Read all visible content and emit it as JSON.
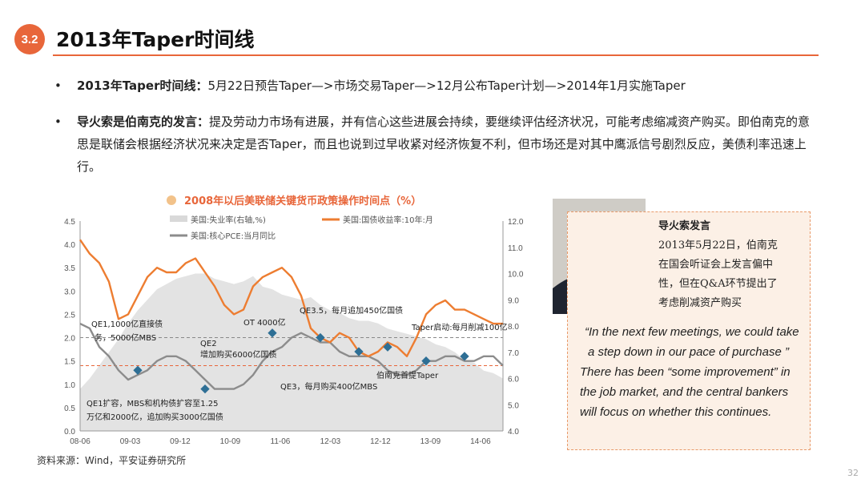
{
  "header": {
    "section_number": "3.2",
    "title": "2013年Taper时间线"
  },
  "bullets": [
    {
      "label": "2013年Taper时间线：",
      "text": "5月22日预告Taper—>市场交易Taper—>12月公布Taper计划—>2014年1月实施Taper"
    },
    {
      "label": "导火索是伯南克的发言：",
      "text": "提及劳动力市场有进展，并有信心这些进展会持续，要继续评估经济状况，可能考虑缩减资产购买。即伯南克的意思是联储会根据经济状况来决定是否Taper，而且也说到过早收紧对经济恢复不利，但市场还是对其中鹰派信号剧烈反应，美债利率迅速上行。"
    }
  ],
  "chart_data": {
    "type": "line",
    "title": "2008年以后美联储关键货币政策操作时间点（%）",
    "x_ticks": [
      "08-06",
      "09-03",
      "09-12",
      "10-09",
      "11-06",
      "12-03",
      "12-12",
      "13-09",
      "14-06"
    ],
    "y_left": {
      "ticks": [
        "0.0",
        "0.5",
        "1.0",
        "1.5",
        "2.0",
        "2.5",
        "3.0",
        "3.5",
        "4.0",
        "4.5"
      ],
      "range": [
        0,
        4.5
      ]
    },
    "y_right": {
      "ticks": [
        "4.0",
        "5.0",
        "6.0",
        "7.0",
        "8.0",
        "9.0",
        "10.0",
        "11.0",
        "12.0"
      ],
      "range": [
        4,
        12
      ]
    },
    "legend": [
      "美国:失业率(右轴,%)",
      "美国:国债收益率:10年:月",
      "美国:核心PCE:当月同比"
    ],
    "reference_lines": {
      "gray_dashed": 2.0,
      "orange_dashed": 1.4
    },
    "series": [
      {
        "name": "美国:失业率(右轴,%)",
        "axis": "right",
        "values": [
          5.6,
          6.0,
          6.5,
          7.0,
          7.5,
          8.1,
          8.6,
          9.0,
          9.4,
          9.6,
          9.8,
          9.9,
          10.0,
          10.0,
          9.8,
          9.7,
          9.6,
          9.7,
          9.9,
          9.5,
          9.4,
          9.2,
          9.1,
          9.0,
          9.1,
          8.8,
          8.6,
          8.5,
          8.3,
          8.2,
          8.2,
          8.1,
          7.9,
          7.8,
          7.7,
          7.6,
          7.5,
          7.3,
          7.2,
          7.0,
          6.7,
          6.6,
          6.3,
          6.2,
          6.0
        ]
      },
      {
        "name": "美国:国债收益率:10年:月",
        "axis": "left",
        "values": [
          4.1,
          3.8,
          3.6,
          3.2,
          2.4,
          2.5,
          2.9,
          3.3,
          3.5,
          3.4,
          3.4,
          3.6,
          3.7,
          3.4,
          3.1,
          2.7,
          2.5,
          2.6,
          3.1,
          3.3,
          3.4,
          3.5,
          3.3,
          2.9,
          2.2,
          2.0,
          1.9,
          2.1,
          2.0,
          1.7,
          1.6,
          1.7,
          1.9,
          1.8,
          1.6,
          2.0,
          2.5,
          2.7,
          2.8,
          2.6,
          2.6,
          2.5,
          2.4,
          2.3,
          2.3
        ]
      },
      {
        "name": "美国:核心PCE:当月同比",
        "axis": "left",
        "values": [
          2.3,
          2.2,
          1.8,
          1.6,
          1.3,
          1.1,
          1.2,
          1.3,
          1.5,
          1.6,
          1.6,
          1.5,
          1.3,
          1.1,
          0.9,
          0.9,
          0.9,
          1.0,
          1.2,
          1.5,
          1.7,
          1.8,
          2.0,
          2.1,
          2.0,
          1.9,
          1.9,
          1.7,
          1.6,
          1.6,
          1.6,
          1.5,
          1.3,
          1.2,
          1.2,
          1.3,
          1.5,
          1.5,
          1.6,
          1.6,
          1.5,
          1.5,
          1.6,
          1.6,
          1.4
        ]
      }
    ],
    "annotations": [
      "QE1,1000亿直接债务，5000亿MBS",
      "QE1扩容，MBS和机构债扩容至1.25万亿和2000亿，追加购买3000亿国债",
      "QE2 增加购买6000亿国债",
      "OT 4000亿",
      "QE3.5，每月追加450亿国债",
      "QE3，每月购买400亿MBS",
      "伯南克首提Taper",
      "Taper启动:每月削减100亿"
    ]
  },
  "source": "资料来源：Wind，平安证券研究所",
  "quote": {
    "heading": "导火索发言",
    "lines": [
      "2013年5月22日，伯南克",
      "在国会听证会上发言偏中",
      "性，但在Q&A环节提出了",
      "考虑削减资产购买"
    ],
    "english_1": "“In the next few meetings, we could take a  step down in our pace of purchase ”",
    "english_2": "There has been “some improvement” in the job market, and the central bankers will focus on whether this continues."
  },
  "page_number": "32"
}
